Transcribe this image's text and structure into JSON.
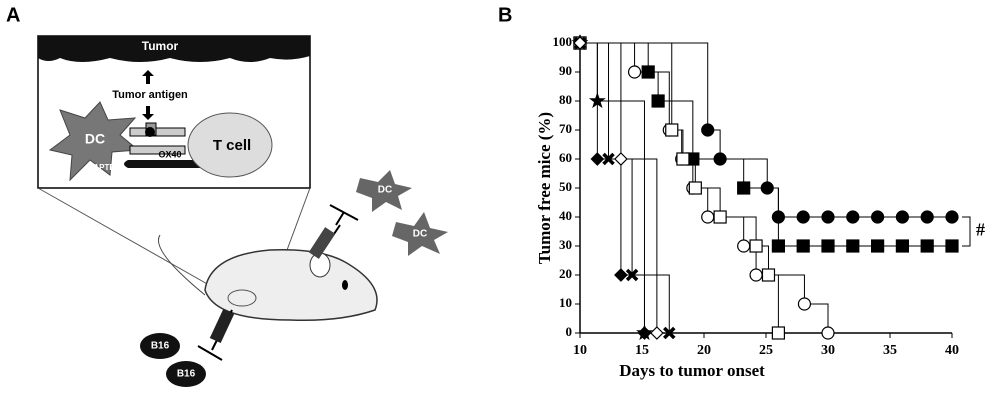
{
  "panel_a": {
    "label": "A",
    "tumor": "Tumor",
    "antigen": "Tumor antigen",
    "dc": "DC",
    "tcell": "T cell",
    "ox40": "OX40",
    "rapter": "RAPTER",
    "dc_cells": [
      "DC",
      "DC"
    ],
    "b16": [
      "B16",
      "B16"
    ]
  },
  "chart_data": {
    "type": "step",
    "panel_label": "B",
    "x_label": "Days to tumor onset",
    "y_label": "Tumor free mice (%)",
    "annotation": "#",
    "xlim": [
      10,
      40
    ],
    "ylim": [
      0,
      100
    ],
    "xticks": [
      10,
      15,
      20,
      25,
      30,
      35,
      40
    ],
    "yticks": [
      0,
      10,
      20,
      30,
      40,
      50,
      60,
      70,
      80,
      90,
      100
    ],
    "series": [
      {
        "marker": "circle",
        "filled": true,
        "color": "#000000",
        "x": [
          10,
          20.3,
          21.3,
          25.1,
          26,
          28,
          30,
          32,
          34,
          36,
          38,
          40
        ],
        "values": [
          100,
          70,
          60,
          50,
          40,
          40,
          40,
          40,
          40,
          40,
          40,
          40
        ]
      },
      {
        "marker": "square",
        "filled": true,
        "color": "#000000",
        "x": [
          10,
          15.5,
          16.3,
          19.1,
          23.2,
          26,
          28,
          30,
          32,
          34,
          36,
          38,
          40
        ],
        "values": [
          100,
          90,
          80,
          60,
          50,
          30,
          30,
          30,
          30,
          30,
          30,
          30,
          30
        ]
      },
      {
        "marker": "circle",
        "filled": false,
        "color": "#000000",
        "x": [
          10,
          14.4,
          17.2,
          18.2,
          19.1,
          20.3,
          23.2,
          24.2,
          28.1,
          30
        ],
        "values": [
          100,
          90,
          70,
          60,
          50,
          40,
          30,
          20,
          10,
          0
        ]
      },
      {
        "marker": "square",
        "filled": false,
        "color": "#000000",
        "x": [
          10,
          17.4,
          18.3,
          19.3,
          21.3,
          24.2,
          25.2,
          26
        ],
        "values": [
          100,
          70,
          60,
          50,
          40,
          30,
          20,
          0
        ]
      },
      {
        "marker": "star",
        "filled": true,
        "color": "#000000",
        "x": [
          10,
          11.4,
          15.2
        ],
        "values": [
          100,
          80,
          0
        ]
      },
      {
        "marker": "diamond",
        "filled": true,
        "color": "#000000",
        "x": [
          10,
          11.4,
          13.3,
          15.2
        ],
        "values": [
          100,
          60,
          20,
          0
        ]
      },
      {
        "marker": "cross",
        "filled": true,
        "color": "#000000",
        "x": [
          10,
          12.3,
          14.2,
          17.2
        ],
        "values": [
          100,
          60,
          20,
          0
        ]
      },
      {
        "marker": "diamond",
        "filled": false,
        "color": "#000000",
        "x": [
          10,
          13.3,
          16.2
        ],
        "values": [
          100,
          60,
          0
        ]
      }
    ]
  }
}
